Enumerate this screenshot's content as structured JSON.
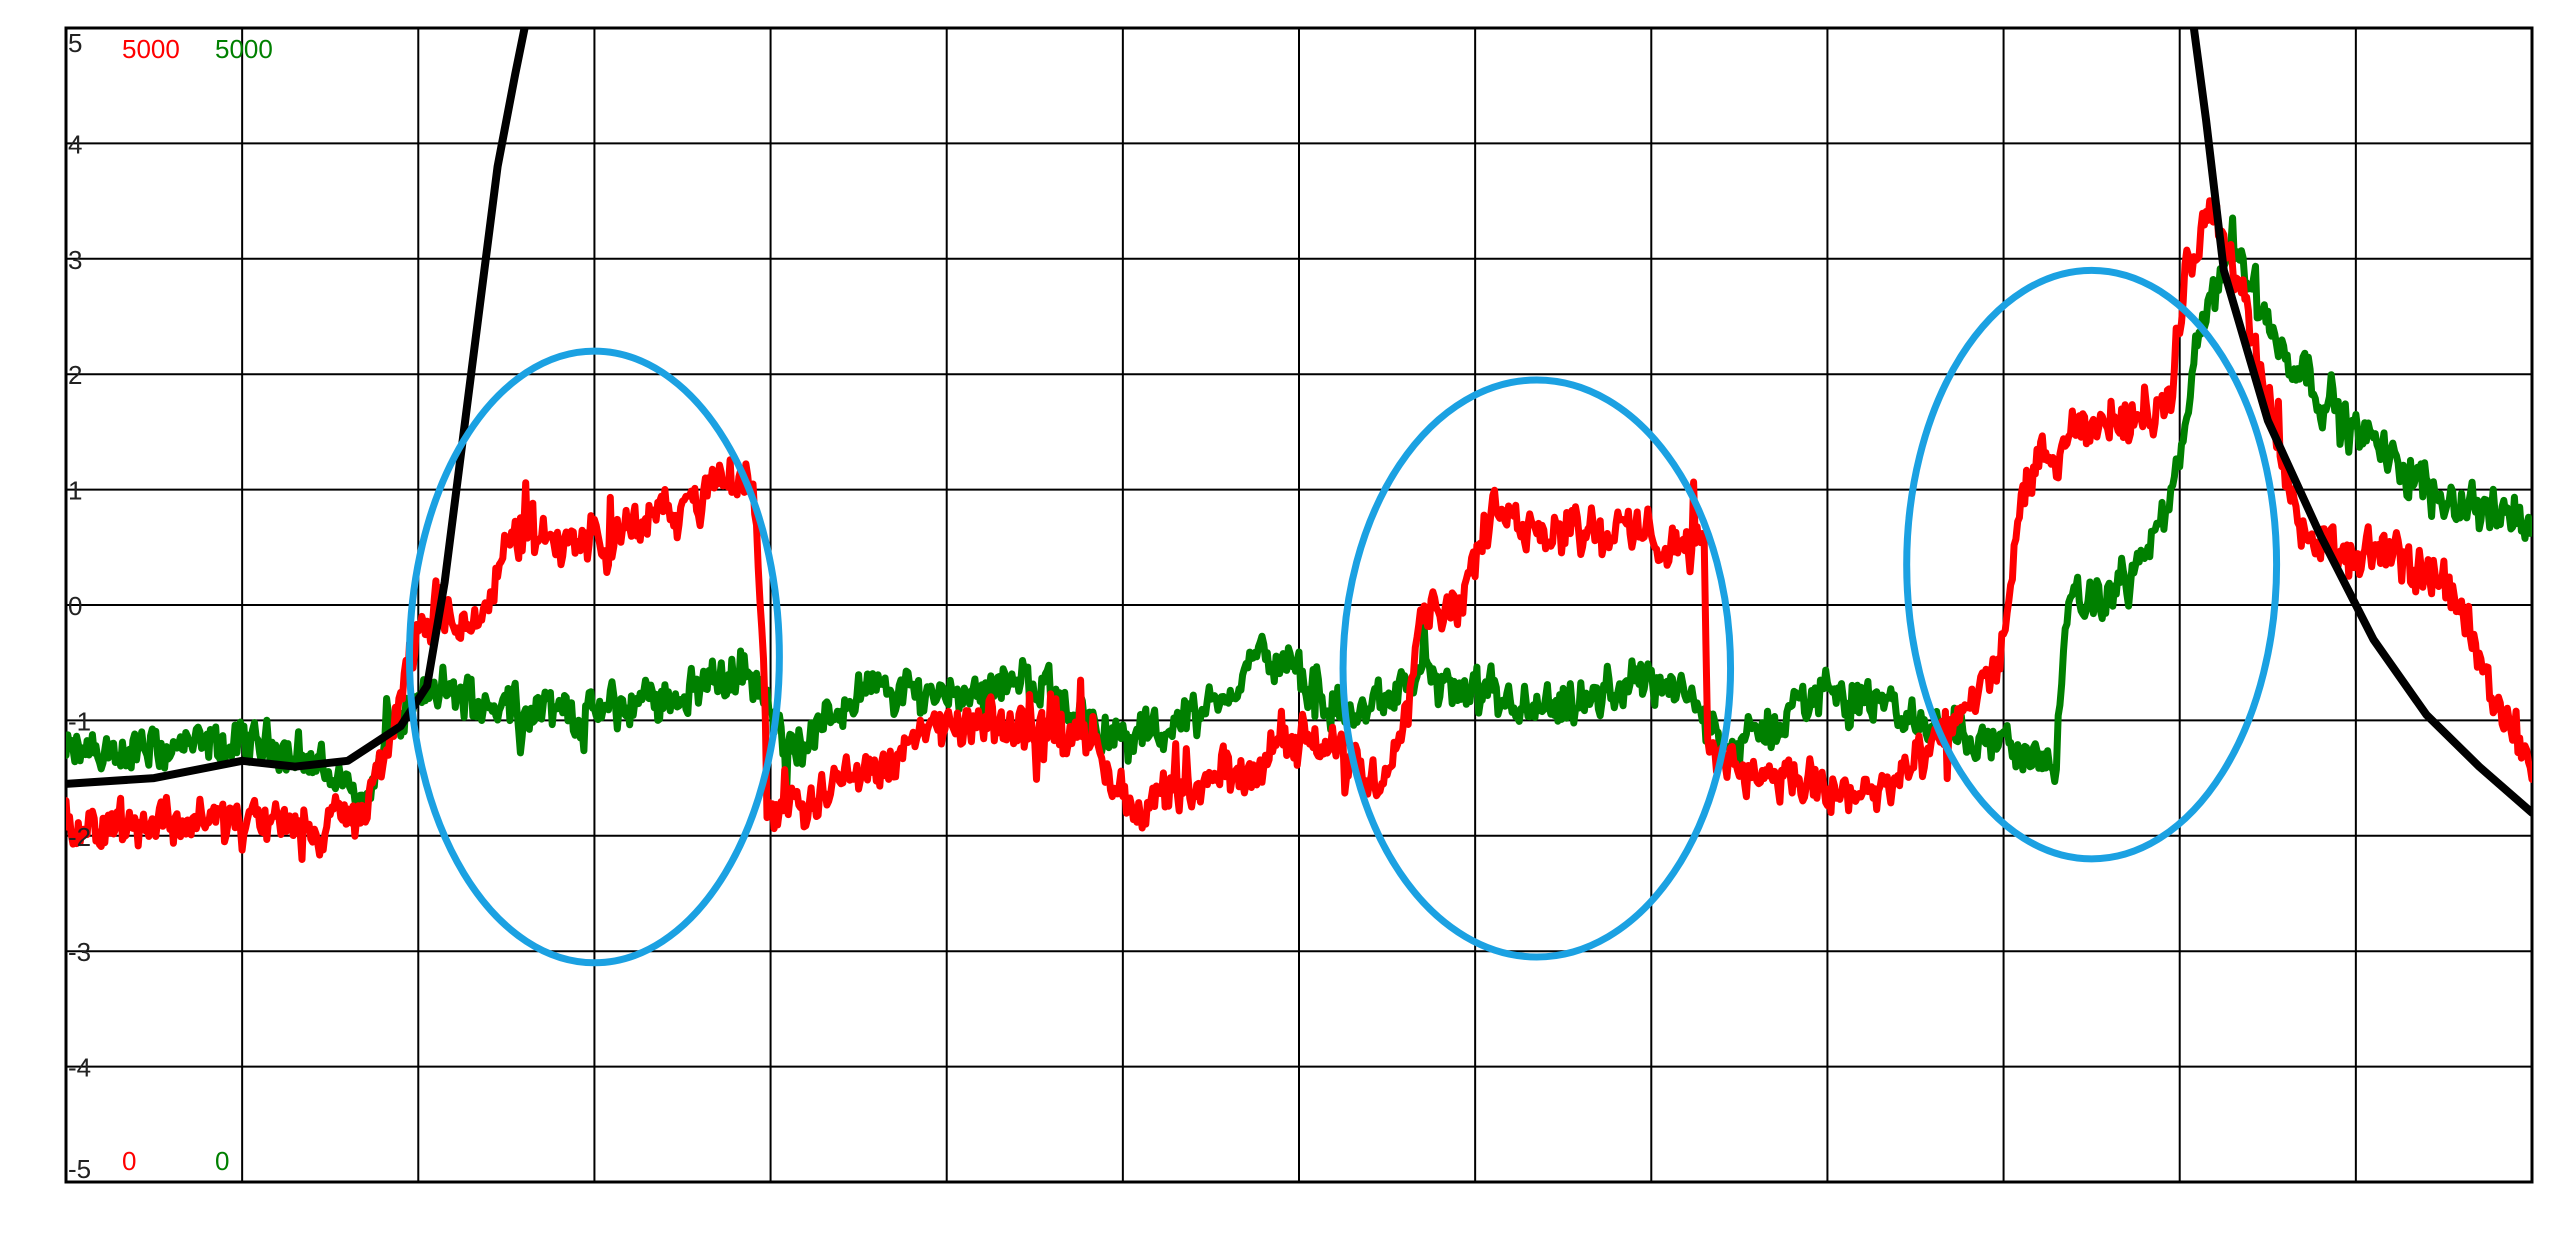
{
  "chart_data": {
    "type": "line",
    "title": "",
    "xlabel": "",
    "ylabel": "",
    "grid": true,
    "ylim": [
      -5,
      5
    ],
    "xlim": [
      0,
      14
    ],
    "y_ticks": [
      "5",
      "4",
      "3",
      "2",
      "1",
      "0",
      "-1",
      "-2",
      "-3",
      "-4",
      "-5"
    ],
    "scale_labels": {
      "red_max": "5000",
      "green_max": "5000",
      "red_min": "0",
      "green_min": "0"
    },
    "colors": {
      "red": "#ff0000",
      "green": "#008000",
      "black": "#000000",
      "ellipse": "#1ba1e2",
      "grid": "#000000",
      "axis_text": "#222222"
    },
    "series": [
      {
        "color": "red",
        "noise": 0.14,
        "points": [
          [
            0.0,
            -1.9
          ],
          [
            0.8,
            -1.85
          ],
          [
            1.4,
            -1.95
          ],
          [
            1.7,
            -1.8
          ],
          [
            1.85,
            -1.05
          ],
          [
            2.0,
            -0.25
          ],
          [
            2.4,
            -0.1
          ],
          [
            2.5,
            0.6
          ],
          [
            3.0,
            0.55
          ],
          [
            3.5,
            0.85
          ],
          [
            3.9,
            1.15
          ],
          [
            3.95,
            -0.2
          ],
          [
            3.98,
            -1.75
          ],
          [
            4.4,
            -1.55
          ],
          [
            5.0,
            -1.05
          ],
          [
            5.8,
            -1.1
          ],
          [
            6.0,
            -1.7
          ],
          [
            6.4,
            -1.65
          ],
          [
            7.0,
            -1.15
          ],
          [
            7.5,
            -1.5
          ],
          [
            7.7,
            -0.05
          ],
          [
            7.9,
            0.05
          ],
          [
            8.1,
            0.75
          ],
          [
            9.0,
            0.6
          ],
          [
            9.3,
            0.5
          ],
          [
            9.32,
            -1.3
          ],
          [
            10.0,
            -1.65
          ],
          [
            10.4,
            -1.55
          ],
          [
            10.7,
            -1.1
          ],
          [
            11.0,
            -0.4
          ],
          [
            11.1,
            1.0
          ],
          [
            11.5,
            1.55
          ],
          [
            11.95,
            1.75
          ],
          [
            12.05,
            3.0
          ],
          [
            12.2,
            3.55
          ],
          [
            12.4,
            2.35
          ],
          [
            12.7,
            0.55
          ],
          [
            13.0,
            0.45
          ],
          [
            13.5,
            0.25
          ],
          [
            13.8,
            -0.8
          ],
          [
            14.0,
            -1.4
          ]
        ]
      },
      {
        "color": "green",
        "noise": 0.13,
        "points": [
          [
            0.0,
            -1.3
          ],
          [
            1.2,
            -1.2
          ],
          [
            1.6,
            -1.55
          ],
          [
            1.7,
            -1.7
          ],
          [
            1.85,
            -1.05
          ],
          [
            2.1,
            -0.75
          ],
          [
            2.5,
            -0.85
          ],
          [
            3.0,
            -0.95
          ],
          [
            3.5,
            -0.75
          ],
          [
            3.85,
            -0.55
          ],
          [
            4.0,
            -0.95
          ],
          [
            4.1,
            -1.3
          ],
          [
            4.5,
            -0.75
          ],
          [
            5.0,
            -0.75
          ],
          [
            5.5,
            -0.65
          ],
          [
            6.0,
            -1.2
          ],
          [
            6.5,
            -0.9
          ],
          [
            6.8,
            -0.4
          ],
          [
            7.3,
            -1.0
          ],
          [
            7.7,
            -0.6
          ],
          [
            8.0,
            -0.85
          ],
          [
            8.5,
            -0.95
          ],
          [
            9.0,
            -0.6
          ],
          [
            9.3,
            -0.95
          ],
          [
            9.5,
            -1.25
          ],
          [
            10.0,
            -0.7
          ],
          [
            10.5,
            -1.0
          ],
          [
            11.0,
            -1.2
          ],
          [
            11.3,
            -1.4
          ],
          [
            11.35,
            -0.1
          ],
          [
            11.7,
            0.2
          ],
          [
            11.95,
            0.85
          ],
          [
            12.1,
            2.2
          ],
          [
            12.3,
            3.2
          ],
          [
            12.5,
            2.4
          ],
          [
            13.0,
            1.5
          ],
          [
            13.5,
            0.95
          ],
          [
            14.0,
            0.7
          ]
        ]
      },
      {
        "color": "black",
        "noise": 0,
        "points": [
          [
            0.0,
            -1.55
          ],
          [
            0.5,
            -1.5
          ],
          [
            1.0,
            -1.35
          ],
          [
            1.3,
            -1.4
          ],
          [
            1.6,
            -1.35
          ],
          [
            1.9,
            -1.05
          ],
          [
            2.05,
            -0.7
          ],
          [
            2.15,
            0.2
          ],
          [
            2.25,
            1.4
          ],
          [
            2.35,
            2.6
          ],
          [
            2.45,
            3.8
          ],
          [
            2.55,
            4.6
          ],
          [
            2.65,
            5.35
          ],
          [
            12.05,
            5.35
          ],
          [
            12.15,
            4.2
          ],
          [
            12.25,
            2.9
          ],
          [
            12.5,
            1.6
          ],
          [
            12.8,
            0.6
          ],
          [
            13.1,
            -0.3
          ],
          [
            13.4,
            -0.95
          ],
          [
            13.7,
            -1.4
          ],
          [
            14.0,
            -1.8
          ]
        ]
      }
    ],
    "annotations": [
      {
        "type": "ellipse",
        "cx": 3.0,
        "cy": -0.45,
        "rx": 1.05,
        "ry": 2.65
      },
      {
        "type": "ellipse",
        "cx": 8.35,
        "cy": -0.55,
        "rx": 1.1,
        "ry": 2.5
      },
      {
        "type": "ellipse",
        "cx": 11.5,
        "cy": 0.35,
        "rx": 1.05,
        "ry": 2.55
      }
    ]
  }
}
